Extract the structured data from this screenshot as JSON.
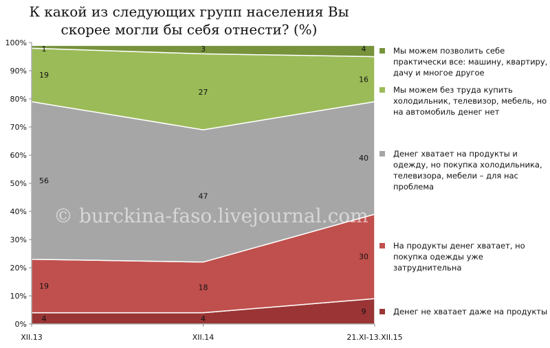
{
  "chart_data": {
    "type": "area",
    "stacked": true,
    "percent": true,
    "title_line1": "К какой из следующих групп населения Вы",
    "title_line2": "скорее могли бы себя отнести? (%)",
    "categories": [
      "XII.13",
      "XII.14",
      "21.XI-13.XII.15"
    ],
    "ylim": [
      0,
      100
    ],
    "yticks": [
      "0%",
      "10%",
      "20%",
      "30%",
      "40%",
      "50%",
      "60%",
      "70%",
      "80%",
      "90%",
      "100%"
    ],
    "grid": false,
    "legend_position": "right",
    "series": [
      {
        "name": "Денег не хватает даже на продукты",
        "values": [
          4,
          4,
          9
        ],
        "color": "#9b3535"
      },
      {
        "name": "На продукты денег хватает, но покупка одежды уже затруднительна",
        "values": [
          19,
          18,
          30
        ],
        "color": "#c0504d"
      },
      {
        "name": "Денег хватает на продукты и одежду, но покупка холодильника, телевизора, мебели – для нас проблема",
        "values": [
          56,
          47,
          40
        ],
        "color": "#a6a6a6"
      },
      {
        "name": "Мы можем без труда купить холодильник, телевизор, мебель, но на автомобиль денег нет",
        "values": [
          19,
          27,
          16
        ],
        "color": "#9bbb59"
      },
      {
        "name": "Мы можем позволить себе практически все: машину, квартиру, дачу и многое другое",
        "values": [
          1,
          3,
          4
        ],
        "color": "#77933c"
      }
    ],
    "watermark": "© burckina-faso.livejournal.com"
  }
}
